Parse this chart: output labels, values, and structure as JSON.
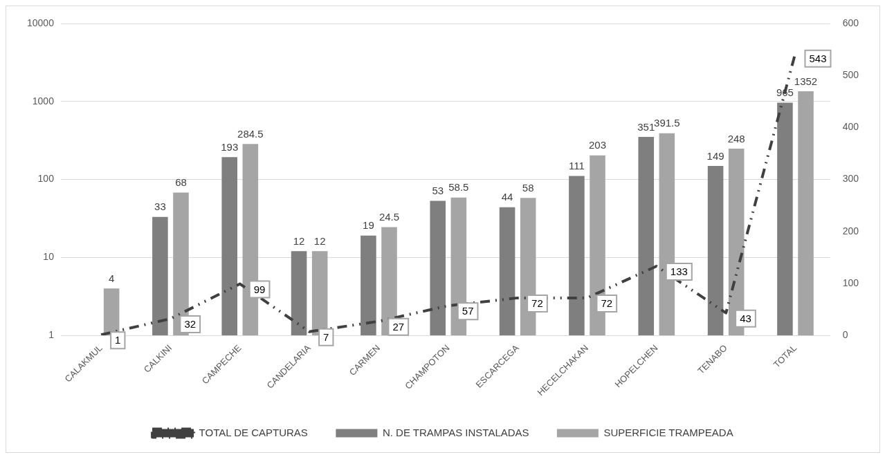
{
  "chart_data": {
    "type": "bar",
    "categories": [
      "CALAKMUL",
      "CALKINI",
      "CAMPECHE",
      "CANDELARIA",
      "CARMEN",
      "CHAMPOTON",
      "ESCARCEGA",
      "HECELCHAKAN",
      "HOPELCHEN",
      "TENABO",
      "TOTAL"
    ],
    "series": [
      {
        "name": "N. DE TRAMPAS INSTALADAS",
        "color": "#7f7f7f",
        "values": [
          null,
          33,
          193,
          12,
          19,
          53,
          44,
          111,
          351,
          149,
          965
        ]
      },
      {
        "name": "SUPERFICIE TRAMPEADA",
        "color": "#a5a5a5",
        "values": [
          4,
          68,
          284.5,
          12,
          24.5,
          58.5,
          58,
          203,
          391.5,
          248,
          1352
        ]
      },
      {
        "name": "TOTAL DE CAPTURAS",
        "type": "line",
        "axis": "y2",
        "color": "#404040",
        "line_style": "dashed",
        "marker": "none",
        "values": [
          1,
          32,
          99,
          7,
          27,
          57,
          72,
          72,
          133,
          43,
          543
        ]
      }
    ],
    "log": "y",
    "ylim": [
      1,
      10000
    ],
    "yticks": [
      1,
      10,
      100,
      1000,
      10000
    ],
    "y2lim": [
      0,
      600
    ],
    "y2ticks": [
      0,
      100,
      200,
      300,
      400,
      500,
      600
    ],
    "grid": "y",
    "legend": "bottom",
    "data_labels": true
  }
}
